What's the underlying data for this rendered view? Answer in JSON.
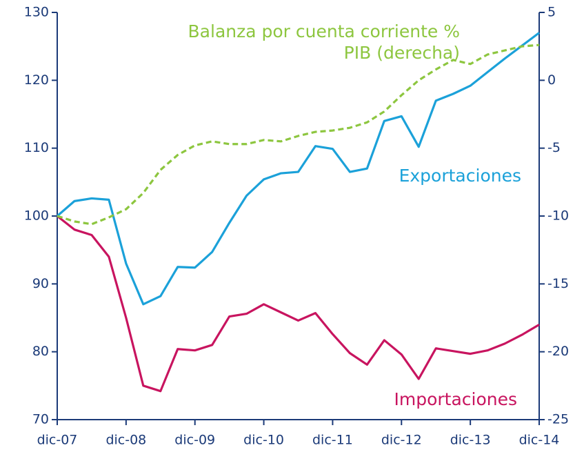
{
  "chart_data": {
    "type": "line",
    "categories": [
      "dic-07",
      null,
      null,
      null,
      "dic-08",
      null,
      null,
      null,
      "dic-09",
      null,
      null,
      null,
      "dic-10",
      null,
      null,
      null,
      "dic-11",
      null,
      null,
      null,
      "dic-12",
      null,
      null,
      null,
      "dic-13",
      null,
      null,
      null,
      "dic-14"
    ],
    "series": [
      {
        "name": "Exportaciones",
        "color": "#1ba1d9",
        "values": [
          100,
          102.2,
          102.6,
          102.4,
          93,
          87,
          88.2,
          92.5,
          92.4,
          94.7,
          99,
          103,
          105.4,
          106.3,
          106.5,
          110.3,
          109.9,
          106.5,
          107,
          114,
          114.7,
          110.2,
          117,
          118,
          119.2,
          121.2,
          123.2,
          125.1,
          127
        ]
      },
      {
        "name": "Importaciones",
        "color": "#c8145f",
        "values": [
          100,
          98,
          97.2,
          94,
          85,
          75,
          74.2,
          80.4,
          80.2,
          81,
          85.2,
          85.6,
          87,
          85.8,
          84.6,
          85.7,
          82.6,
          79.8,
          78.1,
          81.7,
          79.6,
          76,
          80.5,
          80.1,
          79.7,
          80.2,
          81.2,
          82.5,
          84
        ]
      },
      {
        "name": "Balanza por cuenta corriente % PIB (derecha)",
        "color": "#8dc63f",
        "dashed": true,
        "axis": "y2",
        "values": [
          -10,
          -10.4,
          -10.6,
          -10.1,
          -9.5,
          -8.3,
          -6.6,
          -5.5,
          -4.8,
          -4.5,
          -4.7,
          -4.7,
          -4.4,
          -4.5,
          -4.1,
          -3.8,
          -3.7,
          -3.5,
          -3.1,
          -2.3,
          -1.1,
          0,
          0.8,
          1.5,
          1.2,
          1.9,
          2.2,
          2.5,
          2.6
        ]
      }
    ],
    "ylim": [
      70,
      130
    ],
    "yticks": [
      70,
      80,
      90,
      100,
      110,
      120,
      130
    ],
    "y2lim": [
      -25,
      5
    ],
    "y2ticks": [
      -25,
      -20,
      -15,
      -10,
      -5,
      0,
      5
    ],
    "axis_color": "#1b3a78"
  }
}
